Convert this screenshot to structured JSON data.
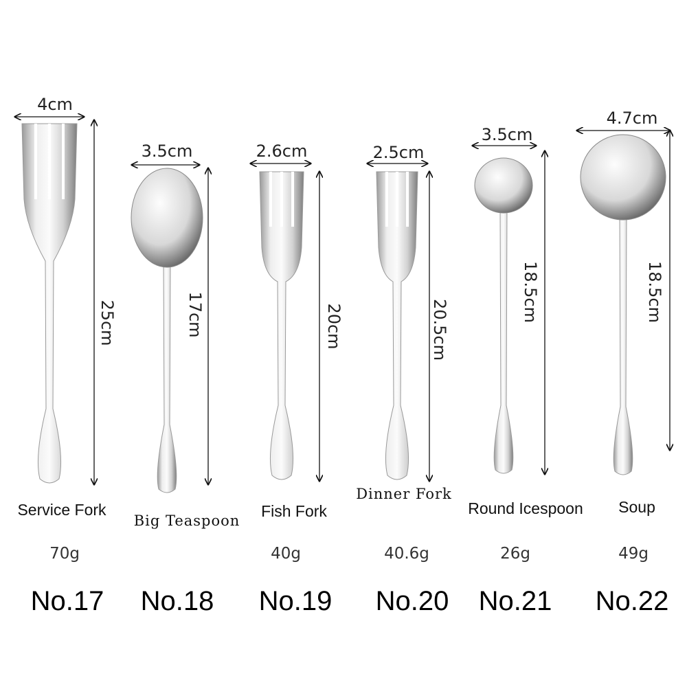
{
  "items": [
    {
      "number": "No.17",
      "name": "Service Fork",
      "weight": "70g",
      "width": "4cm",
      "length": "25cm",
      "type": "fork"
    },
    {
      "number": "No.18",
      "name": "Big Teaspoon",
      "weight": "",
      "width": "3.5cm",
      "length": "17cm",
      "type": "spoon"
    },
    {
      "number": "No.19",
      "name": "Fish Fork",
      "weight": "40g",
      "width": "2.6cm",
      "length": "20cm",
      "type": "fork"
    },
    {
      "number": "No.20",
      "name": "Dinner Fork",
      "weight": "40.6g",
      "width": "2.5cm",
      "length": "20.5cm",
      "type": "fork"
    },
    {
      "number": "No.21",
      "name": "Round Icespoon",
      "weight": "26g",
      "width": "3.5cm",
      "length": "18.5cm",
      "type": "spoon"
    },
    {
      "number": "No.22",
      "name": "Soup",
      "weight": "49g",
      "width": "4.7cm",
      "length": "18.5cm",
      "type": "spoon"
    }
  ],
  "colors": {
    "steel_light": "#f4f4f4",
    "steel_dark": "#8a8a8a",
    "arrow": "#111111"
  }
}
